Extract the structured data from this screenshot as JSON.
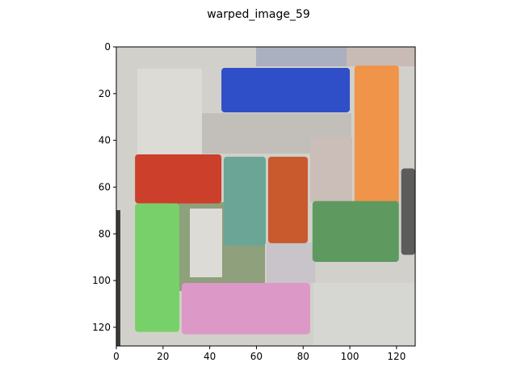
{
  "chart_data": {
    "type": "heatmap",
    "title": "warped_image_59",
    "xlabel": "",
    "ylabel": "",
    "xlim": [
      0,
      128
    ],
    "ylim": [
      128,
      0
    ],
    "x_ticks": [
      0,
      20,
      40,
      60,
      80,
      100,
      120
    ],
    "y_ticks": [
      0,
      20,
      40,
      60,
      80,
      100,
      120
    ],
    "grid": false,
    "background": "#d2d0ca",
    "regions": [
      {
        "name": "blue block",
        "color": "#2f4fc8",
        "x": [
          45,
          100
        ],
        "y": [
          9,
          28
        ]
      },
      {
        "name": "orange block",
        "color": "#ef9448",
        "x": [
          102,
          121
        ],
        "y": [
          8,
          68
        ]
      },
      {
        "name": "red block",
        "color": "#cc3f2a",
        "x": [
          8,
          45
        ],
        "y": [
          46,
          67
        ]
      },
      {
        "name": "teal block",
        "color": "#6aa595",
        "x": [
          46,
          64
        ],
        "y": [
          47,
          85
        ]
      },
      {
        "name": "rust block",
        "color": "#c85a2e",
        "x": [
          65,
          82
        ],
        "y": [
          47,
          84
        ]
      },
      {
        "name": "dark green block",
        "color": "#5e9a5f",
        "x": [
          84,
          121
        ],
        "y": [
          66,
          92
        ]
      },
      {
        "name": "light green block",
        "color": "#78d06a",
        "x": [
          8,
          27
        ],
        "y": [
          67,
          122
        ]
      },
      {
        "name": "pink block",
        "color": "#dc98c6",
        "x": [
          28,
          83
        ],
        "y": [
          101,
          123
        ]
      },
      {
        "name": "dark gray strip",
        "color": "#5c5c5a",
        "x": [
          122,
          128
        ],
        "y": [
          52,
          89
        ]
      }
    ]
  }
}
